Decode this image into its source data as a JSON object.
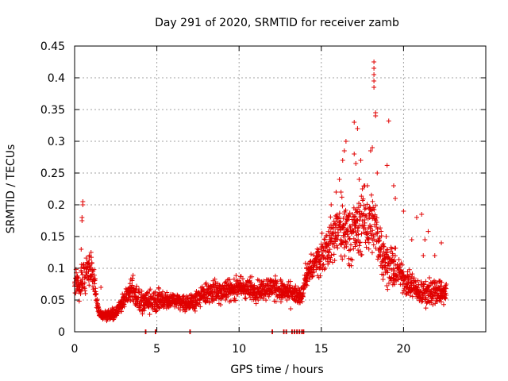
{
  "chart_data": {
    "type": "scatter",
    "title": "Day 291 of 2020, SRMTID for receiver zamb",
    "xlabel": "GPS time / hours",
    "ylabel": "SRMTID / TECUs",
    "xlim": [
      0,
      25
    ],
    "ylim": [
      0,
      0.45
    ],
    "x_ticks": [
      0,
      5,
      10,
      15,
      20
    ],
    "x_tick_labels": [
      "0",
      "5",
      "10",
      "15",
      "20"
    ],
    "y_ticks": [
      0,
      0.05,
      0.1,
      0.15,
      0.2,
      0.25,
      0.3,
      0.35,
      0.4,
      0.45
    ],
    "y_tick_labels": [
      "0",
      "0.05",
      "0.1",
      "0.15",
      "0.2",
      "0.25",
      "0.3",
      "0.35",
      "0.4",
      "0.45"
    ],
    "grid": true,
    "marker": "plus",
    "color": "#e00000",
    "series": [
      {
        "name": "SRMTID",
        "trend": [
          [
            0.0,
            0.075,
            0.02
          ],
          [
            0.5,
            0.08,
            0.03
          ],
          [
            1.0,
            0.1,
            0.025
          ],
          [
            1.2,
            0.07,
            0.03
          ],
          [
            1.5,
            0.028,
            0.008
          ],
          [
            2.0,
            0.025,
            0.008
          ],
          [
            2.5,
            0.03,
            0.01
          ],
          [
            3.0,
            0.05,
            0.015
          ],
          [
            3.5,
            0.07,
            0.025
          ],
          [
            4.0,
            0.045,
            0.02
          ],
          [
            5.0,
            0.05,
            0.02
          ],
          [
            6.0,
            0.05,
            0.015
          ],
          [
            7.0,
            0.045,
            0.015
          ],
          [
            8.0,
            0.06,
            0.02
          ],
          [
            9.0,
            0.065,
            0.02
          ],
          [
            10.0,
            0.07,
            0.02
          ],
          [
            11.0,
            0.065,
            0.02
          ],
          [
            12.0,
            0.07,
            0.02
          ],
          [
            13.0,
            0.06,
            0.02
          ],
          [
            13.8,
            0.055,
            0.015
          ],
          [
            14.0,
            0.085,
            0.02
          ],
          [
            15.0,
            0.12,
            0.03
          ],
          [
            16.0,
            0.16,
            0.05
          ],
          [
            17.0,
            0.16,
            0.05
          ],
          [
            18.0,
            0.18,
            0.06
          ],
          [
            18.5,
            0.14,
            0.04
          ],
          [
            19.0,
            0.11,
            0.04
          ],
          [
            20.0,
            0.085,
            0.025
          ],
          [
            21.0,
            0.06,
            0.02
          ],
          [
            22.0,
            0.065,
            0.025
          ],
          [
            22.6,
            0.06,
            0.015
          ]
        ],
        "points": [
          [
            0.5,
            0.2
          ],
          [
            0.5,
            0.205
          ],
          [
            0.45,
            0.175
          ],
          [
            0.45,
            0.18
          ],
          [
            0.4,
            0.13
          ],
          [
            1.0,
            0.125
          ],
          [
            0.9,
            0.12
          ],
          [
            1.6,
            0.07
          ],
          [
            18.2,
            0.425
          ],
          [
            18.2,
            0.415
          ],
          [
            18.2,
            0.405
          ],
          [
            18.2,
            0.395
          ],
          [
            18.2,
            0.385
          ],
          [
            18.3,
            0.345
          ],
          [
            18.3,
            0.34
          ],
          [
            19.1,
            0.332
          ],
          [
            17.0,
            0.33
          ],
          [
            17.2,
            0.32
          ],
          [
            16.5,
            0.3
          ],
          [
            16.4,
            0.285
          ],
          [
            16.3,
            0.27
          ],
          [
            17.0,
            0.28
          ],
          [
            18.4,
            0.25
          ],
          [
            17.1,
            0.265
          ],
          [
            19.0,
            0.262
          ],
          [
            16.1,
            0.24
          ],
          [
            16.2,
            0.22
          ],
          [
            17.3,
            0.24
          ],
          [
            15.9,
            0.22
          ],
          [
            15.6,
            0.2
          ],
          [
            17.5,
            0.225
          ],
          [
            17.8,
            0.23
          ],
          [
            18.0,
            0.285
          ],
          [
            18.1,
            0.29
          ],
          [
            17.4,
            0.27
          ],
          [
            19.4,
            0.23
          ],
          [
            19.5,
            0.21
          ],
          [
            20.0,
            0.19
          ],
          [
            20.8,
            0.18
          ],
          [
            21.1,
            0.185
          ],
          [
            21.5,
            0.158
          ],
          [
            22.3,
            0.14
          ],
          [
            21.9,
            0.12
          ],
          [
            21.2,
            0.12
          ],
          [
            21.3,
            0.145
          ],
          [
            20.5,
            0.145
          ]
        ],
        "zero_points": [
          4.3,
          4.9,
          7.0,
          12.0,
          12.7,
          12.85,
          13.2,
          13.35,
          13.5,
          13.65,
          13.8,
          13.9
        ]
      }
    ]
  }
}
